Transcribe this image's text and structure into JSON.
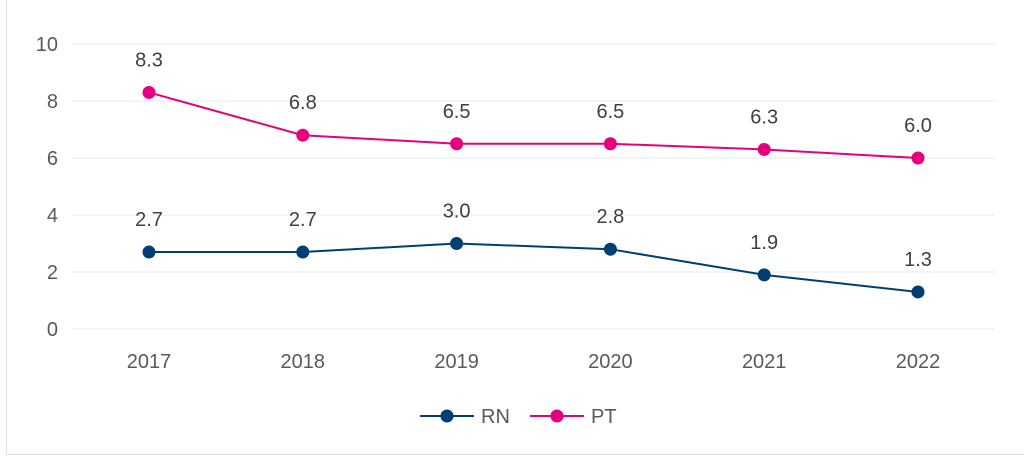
{
  "chart_data": {
    "type": "line",
    "title": "",
    "xlabel": "",
    "ylabel": "",
    "x": [
      "2017",
      "2018",
      "2019",
      "2020",
      "2021",
      "2022"
    ],
    "ylim": [
      0,
      10
    ],
    "yticks": [
      0,
      2,
      4,
      6,
      8,
      10
    ],
    "ytick_labels": [
      "0",
      "2",
      "4",
      "6",
      "8",
      "10"
    ],
    "grid": true,
    "legend_position": "bottom",
    "series": [
      {
        "name": "RN",
        "color": "#003f72",
        "values": [
          2.7,
          2.7,
          3.0,
          2.8,
          1.9,
          1.3
        ],
        "labels": [
          "2.7",
          "2.7",
          "3.0",
          "2.8",
          "1.9",
          "1.3"
        ]
      },
      {
        "name": "PT",
        "color": "#e6007e",
        "values": [
          8.3,
          6.8,
          6.5,
          6.5,
          6.3,
          6.0
        ],
        "labels": [
          "8.3",
          "6.8",
          "6.5",
          "6.5",
          "6.3",
          "6.0"
        ]
      }
    ]
  }
}
